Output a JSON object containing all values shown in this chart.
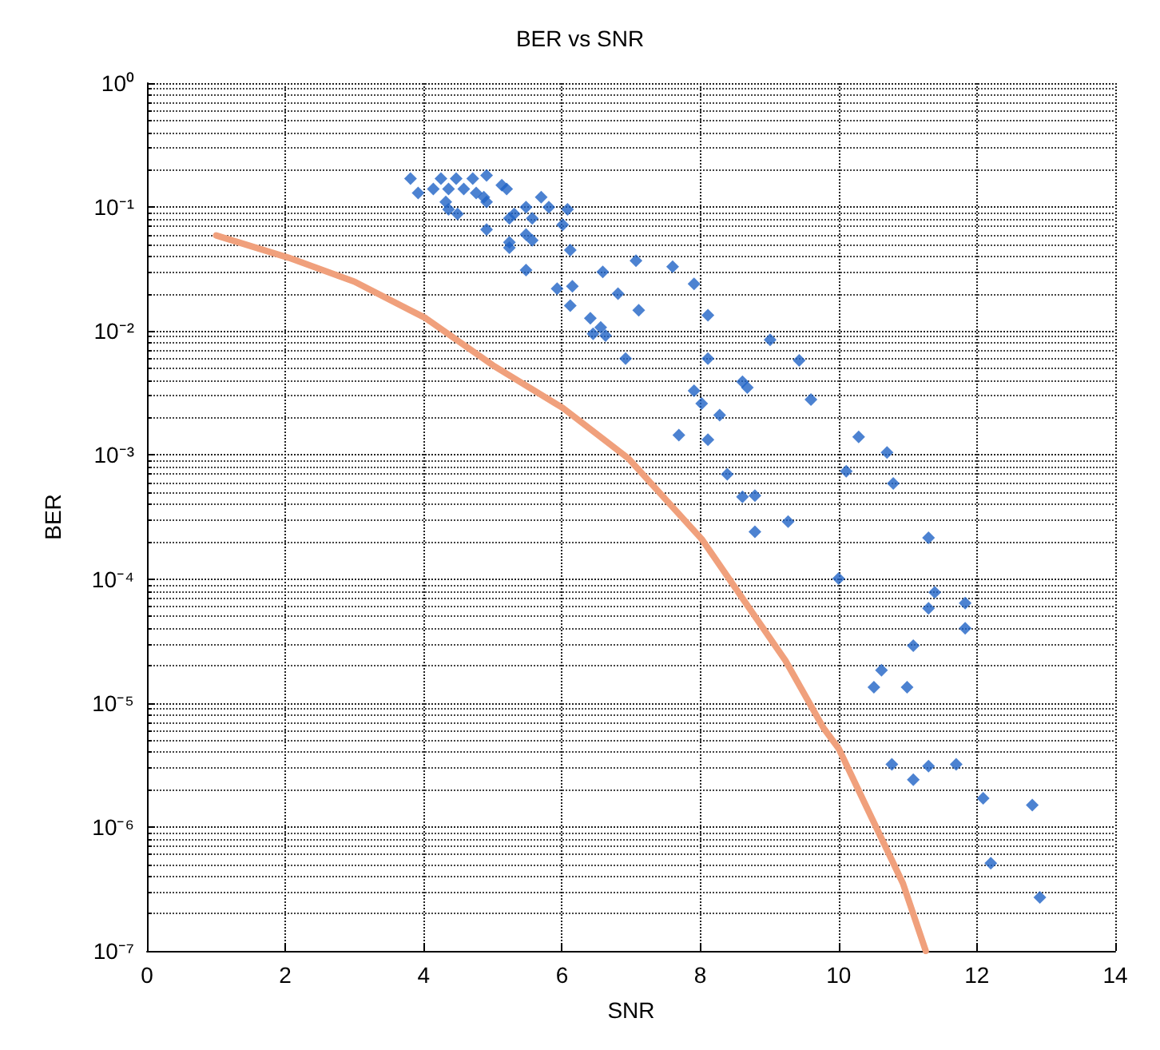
{
  "chart_data": {
    "type": "scatter",
    "title": "BER vs SNR",
    "xlabel": "SNR",
    "ylabel": "BER",
    "log": "y",
    "grid": true,
    "xlim": [
      0,
      14
    ],
    "xticks": [
      0,
      2,
      4,
      6,
      8,
      10,
      12,
      14
    ],
    "ylim": [
      1e-07,
      1
    ],
    "yticks": [
      {
        "value": 1e-07,
        "label": "10⁻⁷"
      },
      {
        "value": 1e-06,
        "label": "10⁻⁶"
      },
      {
        "value": 1e-05,
        "label": "10⁻⁵"
      },
      {
        "value": 0.0001,
        "label": "10⁻⁴"
      },
      {
        "value": 0.001,
        "label": "10⁻³"
      },
      {
        "value": 0.01,
        "label": "10⁻²"
      },
      {
        "value": 0.1,
        "label": "10⁻¹"
      },
      {
        "value": 1,
        "label": "10⁰"
      }
    ],
    "series": [
      {
        "marker": "diamond",
        "color": "#1f63c6",
        "x": [
          3.81,
          3.92,
          4.14,
          4.25,
          4.36,
          4.47,
          4.58,
          4.71,
          4.91,
          4.76,
          4.87,
          4.91,
          5.13,
          5.2,
          4.32,
          4.36,
          4.49,
          4.91,
          5.24,
          5.31,
          5.48,
          5.7,
          5.81,
          6.08,
          5.57,
          6.01,
          5.48,
          5.57,
          5.24,
          5.24,
          6.12,
          5.48,
          6.59,
          5.93,
          6.15,
          6.12,
          6.81,
          6.41,
          6.45,
          6.56,
          6.63,
          6.92,
          7.07,
          7.6,
          7.91,
          7.11,
          8.11,
          8.11,
          9.01,
          9.43,
          8.61,
          8.68,
          9.6,
          7.91,
          8.02,
          8.28,
          7.69,
          8.11,
          8.39,
          8.61,
          8.79,
          9.27,
          8.79,
          10.11,
          10.29,
          10.7,
          10.79,
          11.3,
          10.0,
          11.39,
          11.3,
          11.83,
          11.83,
          11.08,
          10.62,
          10.51,
          10.99,
          10.77,
          11.3,
          11.7,
          11.08,
          12.09,
          12.8,
          12.2,
          12.91
        ],
        "values": [
          0.17,
          0.13,
          0.14,
          0.17,
          0.14,
          0.17,
          0.14,
          0.17,
          0.18,
          0.13,
          0.12,
          0.11,
          0.15,
          0.14,
          0.11,
          0.096,
          0.088,
          0.066,
          0.081,
          0.088,
          0.1,
          0.12,
          0.1,
          0.096,
          0.081,
          0.072,
          0.06,
          0.054,
          0.052,
          0.047,
          0.045,
          0.031,
          0.03,
          0.022,
          0.023,
          0.016,
          0.02,
          0.0127,
          0.0095,
          0.0107,
          0.0092,
          0.006,
          0.037,
          0.033,
          0.024,
          0.0147,
          0.0134,
          0.006,
          0.0085,
          0.0058,
          0.0039,
          0.0035,
          0.0028,
          0.0033,
          0.0026,
          0.0021,
          0.00145,
          0.00133,
          0.0007,
          0.00046,
          0.00047,
          0.00029,
          0.00024,
          0.00074,
          0.0014,
          0.00105,
          0.00059,
          0.000215,
          0.000101,
          7.8e-05,
          5.8e-05,
          6.4e-05,
          4e-05,
          2.9e-05,
          1.84e-05,
          1.34e-05,
          1.34e-05,
          3.2e-06,
          3.1e-06,
          3.2e-06,
          2.4e-06,
          1.7e-06,
          1.5e-06,
          5.1e-07,
          2.7e-07
        ]
      },
      {
        "type": "line",
        "marker": "none",
        "color": "#f0a07c",
        "x": [
          1.0,
          2.05,
          3.0,
          4.03,
          5.0,
          6.01,
          6.96,
          8.02,
          9.23,
          9.78,
          10.0,
          10.93,
          11.26
        ],
        "values": [
          0.059,
          0.039,
          0.025,
          0.0127,
          0.0053,
          0.0024,
          0.00094,
          0.00021,
          2.2e-05,
          6.3e-06,
          4.3e-06,
          3.5e-07,
          1e-07
        ]
      }
    ]
  }
}
